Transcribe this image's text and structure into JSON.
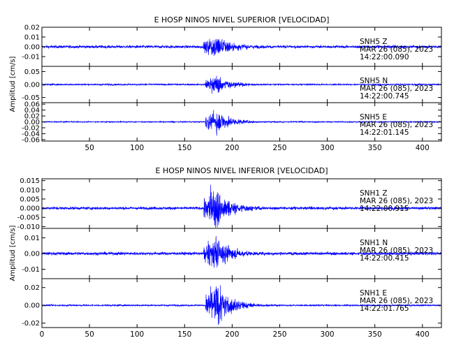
{
  "chart_data": [
    {
      "type": "line",
      "title": "E HOSP NINOS NIVEL SUPERIOR [VELOCIDAD]",
      "ylabel": "Amplitud [cm/s]",
      "xlabel": "",
      "xlim": [
        0,
        420
      ],
      "x_ticks": [
        50,
        100,
        150,
        200,
        250,
        300,
        350,
        400
      ],
      "x_tick_labels": [
        "50",
        "100",
        "150",
        "200",
        "250",
        "300",
        "350",
        "400"
      ],
      "series_color": "#0000ff",
      "grid": false,
      "panels": [
        {
          "component": "Z",
          "info": [
            "SNH5   Z",
            "MAR 26 (085), 2023",
            "14:22:00.090"
          ],
          "ylim": [
            -0.02,
            0.02
          ],
          "y_ticks": [
            0.02,
            0.01,
            0.0,
            -0.01
          ],
          "y_tick_labels": [
            "0.02",
            "0.01",
            "0.00",
            "-0.01"
          ],
          "noise_level": 0.0015,
          "event_onset": 170,
          "event_peak": 0.016
        },
        {
          "component": "N",
          "info": [
            "SNH5   N",
            "MAR 26 (085), 2023",
            "14:22:00.745"
          ],
          "ylim": [
            -0.07,
            0.07
          ],
          "y_ticks": [
            0.05,
            0.0,
            -0.05
          ],
          "y_tick_labels": [
            "0.05",
            "0.00",
            "-0.05"
          ],
          "noise_level": 0.003,
          "event_onset": 172,
          "event_peak": 0.04
        },
        {
          "component": "E",
          "info": [
            "SNH5   E",
            "MAR 26 (085), 2023",
            "14:22:01.145"
          ],
          "ylim": [
            -0.065,
            0.065
          ],
          "y_ticks": [
            0.06,
            0.04,
            0.02,
            0.0,
            -0.02,
            -0.04,
            -0.06
          ],
          "y_tick_labels": [
            "0.06",
            "0.04",
            "0.02",
            "0.00",
            "-0.02",
            "-0.04",
            "-0.06"
          ],
          "noise_level": 0.002,
          "event_onset": 172,
          "event_peak": 0.045
        }
      ]
    },
    {
      "type": "line",
      "title": "E HOSP NINOS NIVEL INFERIOR [VELOCIDAD]",
      "ylabel": "Amplitud [cm/s]",
      "xlabel": "",
      "xlim": [
        0,
        420
      ],
      "x_ticks": [
        0,
        50,
        100,
        150,
        200,
        250,
        300,
        350,
        400
      ],
      "x_tick_labels": [
        "0",
        "50",
        "100",
        "150",
        "200",
        "250",
        "300",
        "350",
        "400"
      ],
      "series_color": "#0000ff",
      "grid": false,
      "panels": [
        {
          "component": "Z",
          "info": [
            "SNH1   Z",
            "MAR 26 (085), 2023",
            "14:22:00.915"
          ],
          "ylim": [
            -0.011,
            0.016
          ],
          "y_ticks": [
            0.015,
            0.01,
            0.005,
            0.0,
            -0.005,
            -0.01
          ],
          "y_tick_labels": [
            "0.015",
            "0.010",
            "0.005",
            "0.000",
            "-0.005",
            "-0.010"
          ],
          "noise_level": 0.0008,
          "event_onset": 170,
          "event_peak": 0.014
        },
        {
          "component": "N",
          "info": [
            "SNH1   N",
            "MAR 26 (085), 2023",
            "14:22:00.415"
          ],
          "ylim": [
            -0.016,
            0.016
          ],
          "y_ticks": [
            0.01,
            0.0,
            -0.01
          ],
          "y_tick_labels": [
            "0.01",
            "0.00",
            "-0.01"
          ],
          "noise_level": 0.001,
          "event_onset": 170,
          "event_peak": 0.013
        },
        {
          "component": "E",
          "info": [
            "SNH1   E",
            "MAR 26 (085), 2023",
            "14:22:01.765"
          ],
          "ylim": [
            -0.025,
            0.03
          ],
          "y_ticks": [
            0.02,
            0.0,
            -0.02
          ],
          "y_tick_labels": [
            "0.02",
            "0.00",
            "-0.02"
          ],
          "noise_level": 0.0009,
          "event_onset": 172,
          "event_peak": 0.027
        }
      ]
    }
  ]
}
